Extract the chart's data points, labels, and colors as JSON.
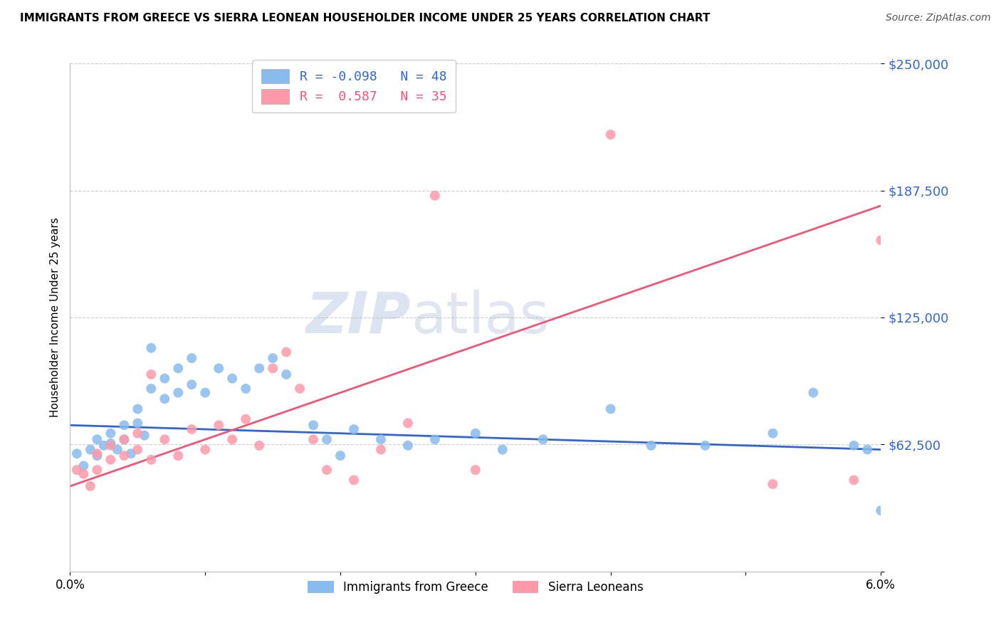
{
  "title": "IMMIGRANTS FROM GREECE VS SIERRA LEONEAN HOUSEHOLDER INCOME UNDER 25 YEARS CORRELATION CHART",
  "source": "Source: ZipAtlas.com",
  "ylabel": "Householder Income Under 25 years",
  "xlim": [
    0.0,
    0.06
  ],
  "ylim": [
    0,
    250000
  ],
  "yticks": [
    0,
    62500,
    125000,
    187500,
    250000
  ],
  "ytick_labels": [
    "",
    "$62,500",
    "$125,000",
    "$187,500",
    "$250,000"
  ],
  "xticks": [
    0.0,
    0.01,
    0.02,
    0.03,
    0.04,
    0.05,
    0.06
  ],
  "xtick_labels": [
    "0.0%",
    "",
    "",
    "",
    "",
    "",
    "6.0%"
  ],
  "legend1_label": "R = -0.098   N = 48",
  "legend2_label": "R =  0.587   N = 35",
  "color_blue": "#88BBEE",
  "color_pink": "#FF99AA",
  "color_blue_line": "#3366CC",
  "color_pink_line": "#EE5577",
  "color_ytick": "#3366CC",
  "watermark_zip": "ZIP",
  "watermark_atlas": "atlas",
  "legend_label1": "Immigrants from Greece",
  "legend_label2": "Sierra Leoneans",
  "greece_x": [
    0.0005,
    0.001,
    0.0015,
    0.002,
    0.002,
    0.0025,
    0.003,
    0.003,
    0.0035,
    0.004,
    0.004,
    0.0045,
    0.005,
    0.005,
    0.0055,
    0.006,
    0.006,
    0.007,
    0.007,
    0.008,
    0.008,
    0.009,
    0.009,
    0.01,
    0.011,
    0.012,
    0.013,
    0.014,
    0.015,
    0.016,
    0.018,
    0.019,
    0.02,
    0.021,
    0.023,
    0.025,
    0.027,
    0.03,
    0.032,
    0.035,
    0.04,
    0.043,
    0.047,
    0.052,
    0.055,
    0.058,
    0.059,
    0.06
  ],
  "greece_y": [
    58000,
    52000,
    60000,
    65000,
    57000,
    62000,
    68000,
    63000,
    60000,
    72000,
    65000,
    58000,
    80000,
    73000,
    67000,
    90000,
    110000,
    95000,
    85000,
    100000,
    88000,
    105000,
    92000,
    88000,
    100000,
    95000,
    90000,
    100000,
    105000,
    97000,
    72000,
    65000,
    57000,
    70000,
    65000,
    62000,
    65000,
    68000,
    60000,
    65000,
    80000,
    62000,
    62000,
    68000,
    88000,
    62000,
    60000,
    30000
  ],
  "sierra_x": [
    0.0005,
    0.001,
    0.0015,
    0.002,
    0.002,
    0.003,
    0.003,
    0.004,
    0.004,
    0.005,
    0.005,
    0.006,
    0.006,
    0.007,
    0.008,
    0.009,
    0.01,
    0.011,
    0.012,
    0.013,
    0.014,
    0.015,
    0.016,
    0.017,
    0.018,
    0.019,
    0.021,
    0.023,
    0.025,
    0.027,
    0.03,
    0.04,
    0.052,
    0.058,
    0.06
  ],
  "sierra_y": [
    50000,
    48000,
    42000,
    58000,
    50000,
    62000,
    55000,
    65000,
    57000,
    68000,
    60000,
    55000,
    97000,
    65000,
    57000,
    70000,
    60000,
    72000,
    65000,
    75000,
    62000,
    100000,
    108000,
    90000,
    65000,
    50000,
    45000,
    60000,
    73000,
    185000,
    50000,
    215000,
    43000,
    45000,
    163000
  ],
  "blue_trendline_x": [
    0.0,
    0.06
  ],
  "blue_trendline_y": [
    72000,
    60000
  ],
  "pink_trendline_x": [
    0.0,
    0.06
  ],
  "pink_trendline_y": [
    42000,
    180000
  ]
}
